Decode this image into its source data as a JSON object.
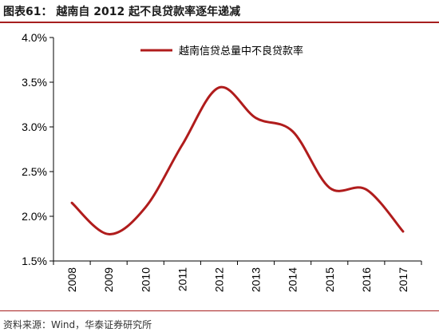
{
  "header": {
    "title": "图表61：  越南自 2012 起不良贷款率逐年递减"
  },
  "footer": {
    "source": "资料来源：Wind，华泰证券研究所"
  },
  "colors": {
    "line": "#b01c1c",
    "rule": "#a61f1f",
    "axis": "#000000"
  },
  "chart_data": {
    "type": "line",
    "categories": [
      "2008",
      "2009",
      "2010",
      "2011",
      "2012",
      "2013",
      "2014",
      "2015",
      "2016",
      "2017"
    ],
    "series": [
      {
        "name": "越南信贷总量中不良贷款率",
        "values": [
          2.15,
          1.8,
          2.1,
          2.8,
          3.44,
          3.1,
          2.95,
          2.32,
          2.3,
          1.83
        ]
      }
    ],
    "ylim": [
      1.5,
      4.0
    ],
    "yticks": [
      "1.5%",
      "2.0%",
      "2.5%",
      "3.0%",
      "3.5%",
      "4.0%"
    ],
    "ytick_values": [
      1.5,
      2.0,
      2.5,
      3.0,
      3.5,
      4.0
    ],
    "legend_position": "top-center",
    "grid": false,
    "xlabel": "",
    "ylabel": ""
  }
}
